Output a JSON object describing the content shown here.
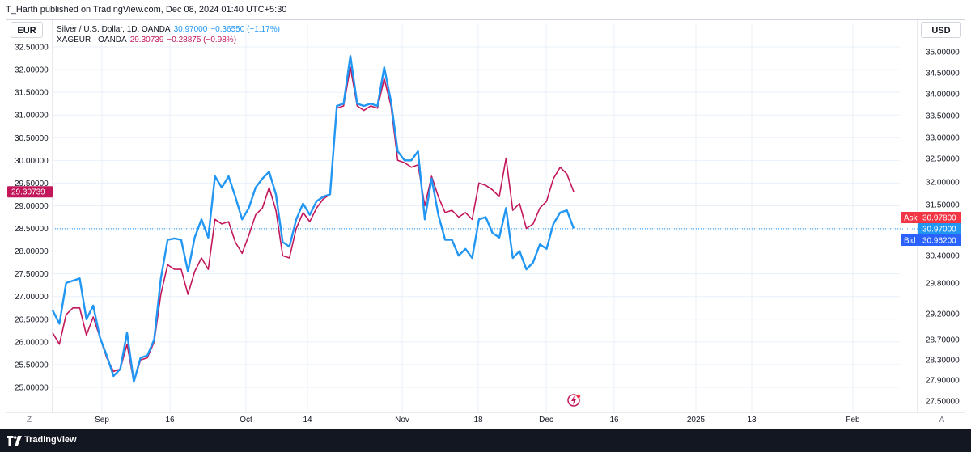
{
  "header": {
    "text": "T_Harth published on TradingView.com, Dec 08, 2024 01:40 UTC+5:30"
  },
  "left_axis": {
    "currency": "EUR"
  },
  "right_axis": {
    "currency": "USD"
  },
  "legend": {
    "row1": {
      "name": "Silver / U.S. Dollar, 1D, OANDA",
      "price": "30.97000",
      "change": "−0.36550 (−1.17%)"
    },
    "row2": {
      "name": "XAGEUR · OANDA",
      "price": "29.30739",
      "change": "−0.28875 (−0.98%)"
    }
  },
  "price_labels": {
    "left_last": "29.30739",
    "ask_tag": "Ask",
    "ask_value": "30.97800",
    "last_value": "30.97000",
    "bid_tag": "Bid",
    "bid_value": "30.96200"
  },
  "bottom_left_btn": "Z",
  "bottom_right_btn": "A",
  "footer": {
    "brand": "TradingView"
  },
  "colors": {
    "usd": "#2196f3",
    "eur": "#c2185b",
    "ask": "#f23645",
    "bid": "#2962ff",
    "grid": "#e9f0f9"
  },
  "chart_data": {
    "type": "line",
    "x_tick_labels": [
      "Sep",
      "16",
      "Oct",
      "14",
      "Nov",
      "18",
      "Dec",
      "16",
      "2025",
      "13",
      "Feb"
    ],
    "left_axis_ticks": [
      "32.50000",
      "32.00000",
      "31.50000",
      "31.00000",
      "30.50000",
      "30.00000",
      "29.50000",
      "29.00000",
      "28.50000",
      "28.00000",
      "27.50000",
      "27.00000",
      "26.50000",
      "26.00000",
      "25.50000",
      "25.00000"
    ],
    "left_ylim": [
      24.75,
      32.7
    ],
    "right_axis_ticks": [
      "35.00000",
      "34.50000",
      "34.00000",
      "33.50000",
      "33.00000",
      "32.50000",
      "32.00000",
      "31.50000",
      "30.40000",
      "29.80000",
      "29.20000",
      "28.70000",
      "28.30000",
      "27.90000",
      "27.50000"
    ],
    "right_axis_scale": "non-linear",
    "series": [
      {
        "name": "Silver / U.S. Dollar, 1D, OANDA",
        "axis": "right",
        "color": "#2196f3",
        "left_equivalent_values": [
          26.7,
          26.4,
          27.3,
          27.35,
          27.4,
          26.5,
          26.8,
          26.1,
          25.7,
          25.25,
          25.4,
          26.2,
          25.12,
          25.65,
          25.7,
          26.05,
          27.4,
          28.25,
          28.28,
          28.25,
          27.55,
          28.3,
          28.7,
          28.3,
          29.65,
          29.4,
          29.65,
          29.2,
          28.7,
          28.95,
          29.4,
          29.6,
          29.75,
          29.25,
          28.2,
          28.1,
          28.7,
          29.05,
          28.8,
          29.1,
          29.2,
          29.25,
          31.2,
          31.25,
          32.3,
          31.25,
          31.2,
          31.25,
          31.2,
          32.05,
          31.3,
          30.2,
          30.0,
          30.0,
          30.2,
          28.7,
          29.6,
          28.8,
          28.25,
          28.25,
          27.9,
          28.05,
          27.85,
          28.7,
          28.75,
          28.4,
          28.3,
          28.95,
          27.85,
          28.0,
          27.6,
          27.75,
          28.15,
          28.05,
          28.6,
          28.85,
          28.9,
          28.5
        ]
      },
      {
        "name": "XAGEUR · OANDA",
        "axis": "left",
        "color": "#c2185b",
        "values": [
          26.2,
          25.95,
          26.6,
          26.75,
          26.75,
          26.15,
          26.55,
          26.1,
          25.65,
          25.35,
          25.4,
          25.95,
          25.12,
          25.6,
          25.65,
          26.0,
          27.05,
          27.7,
          27.6,
          27.6,
          27.05,
          27.55,
          27.85,
          27.6,
          28.7,
          28.6,
          28.65,
          28.2,
          27.95,
          28.35,
          28.8,
          28.95,
          29.4,
          28.9,
          27.9,
          27.85,
          28.5,
          28.85,
          28.65,
          28.95,
          29.15,
          29.25,
          31.15,
          31.2,
          32.05,
          31.2,
          31.1,
          31.2,
          31.15,
          31.8,
          31.2,
          30.0,
          29.95,
          29.85,
          29.9,
          29.0,
          29.65,
          29.2,
          28.85,
          28.9,
          28.75,
          28.85,
          28.7,
          29.5,
          29.45,
          29.35,
          29.2,
          30.05,
          28.9,
          29.05,
          28.5,
          28.6,
          28.95,
          29.1,
          29.6,
          29.85,
          29.7,
          29.31
        ]
      }
    ]
  }
}
